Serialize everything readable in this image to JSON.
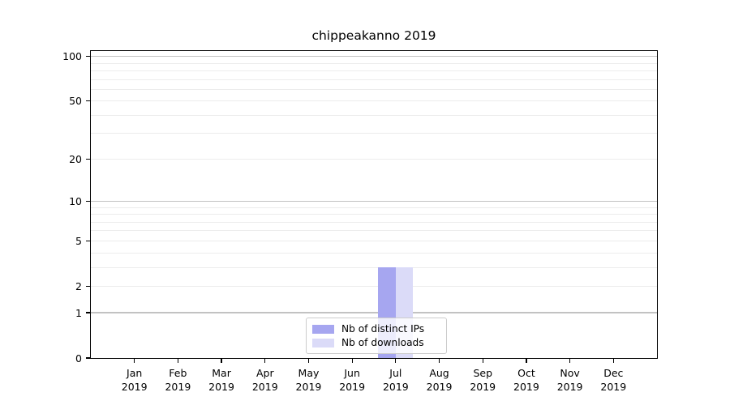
{
  "chart_data": {
    "type": "bar",
    "title": "chippeakanno 2019",
    "categories": [
      "Jan 2019",
      "Feb 2019",
      "Mar 2019",
      "Apr 2019",
      "May 2019",
      "Jun 2019",
      "Jul 2019",
      "Aug 2019",
      "Sep 2019",
      "Oct 2019",
      "Nov 2019",
      "Dec 2019"
    ],
    "series": [
      {
        "name": "Nb of distinct IPs",
        "color": "#a6a6f0",
        "values": [
          0,
          0,
          0,
          0,
          0,
          0,
          3,
          0,
          0,
          0,
          0,
          0
        ]
      },
      {
        "name": "Nb of downloads",
        "color": "#dbdbf8",
        "values": [
          0,
          0,
          0,
          0,
          0,
          0,
          3,
          0,
          0,
          0,
          0,
          0
        ]
      }
    ],
    "xlabel": "",
    "ylabel": "",
    "yscale": "log1p",
    "ylim": [
      0,
      110
    ],
    "yticks": [
      0,
      1,
      2,
      5,
      10,
      20,
      50,
      100
    ],
    "grid": {
      "major_ticks": [
        1,
        10,
        100
      ],
      "minor_ticks": [
        2,
        3,
        4,
        5,
        6,
        7,
        8,
        9,
        20,
        30,
        40,
        50,
        60,
        70,
        80,
        90
      ],
      "major_color": "#c2c2c2",
      "minor_color": "#ececec"
    },
    "legend": {
      "position": "lower center",
      "entries": [
        "Nb of distinct IPs",
        "Nb of downloads"
      ]
    },
    "colors": {
      "axis": "#000000",
      "text": "#000000",
      "background": "#ffffff",
      "legend_border": "#cccccc"
    }
  }
}
